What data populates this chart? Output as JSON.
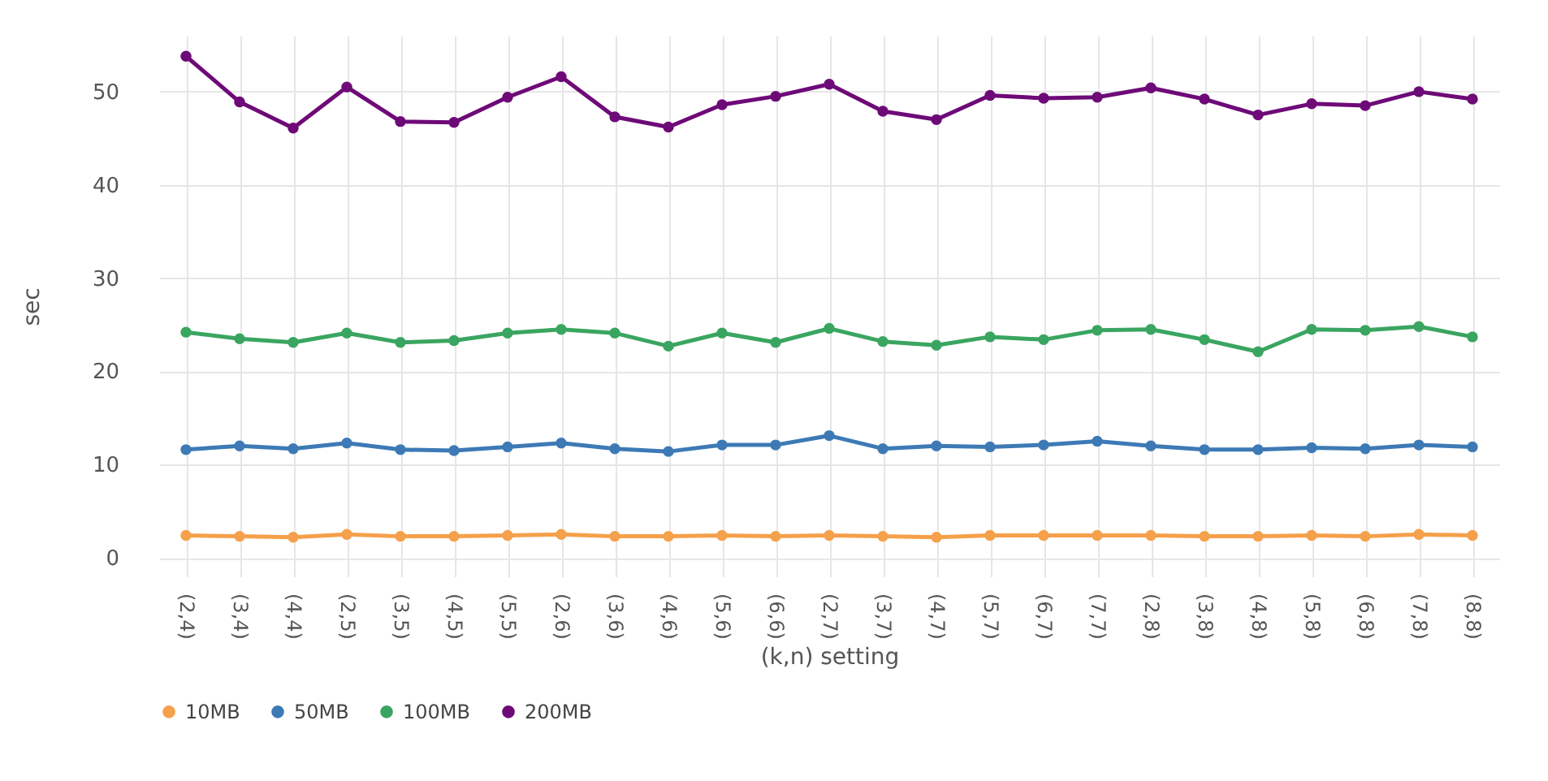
{
  "chart_data": {
    "type": "line",
    "xlabel": "(k,n) setting",
    "ylabel": "sec",
    "categories": [
      "(2,4)",
      "(3,4)",
      "(4,4)",
      "(2,5)",
      "(3,5)",
      "(4,5)",
      "(5,5)",
      "(2,6)",
      "(3,6)",
      "(4,6)",
      "(5,6)",
      "(6,6)",
      "(2,7)",
      "(3,7)",
      "(4,7)",
      "(5,7)",
      "(6,7)",
      "(7,7)",
      "(2,8)",
      "(3,8)",
      "(4,8)",
      "(5,8)",
      "(6,8)",
      "(7,8)",
      "(8,8)"
    ],
    "series": [
      {
        "name": "10MB",
        "color": "#f5a04a",
        "values": [
          2.4,
          2.3,
          2.2,
          2.5,
          2.3,
          2.3,
          2.4,
          2.5,
          2.3,
          2.3,
          2.4,
          2.3,
          2.4,
          2.3,
          2.2,
          2.4,
          2.4,
          2.4,
          2.4,
          2.3,
          2.3,
          2.4,
          2.3,
          2.5,
          2.4
        ]
      },
      {
        "name": "50MB",
        "color": "#3d7ab5",
        "values": [
          11.6,
          12.0,
          11.7,
          12.3,
          11.6,
          11.5,
          11.9,
          12.3,
          11.7,
          11.4,
          12.1,
          12.1,
          13.1,
          11.7,
          12.0,
          11.9,
          12.1,
          12.5,
          12.0,
          11.6,
          11.6,
          11.8,
          11.7,
          12.1,
          11.9
        ]
      },
      {
        "name": "100MB",
        "color": "#3aa560",
        "values": [
          24.2,
          23.5,
          23.1,
          24.1,
          23.1,
          23.3,
          24.1,
          24.5,
          24.1,
          22.7,
          24.1,
          23.1,
          24.6,
          23.2,
          22.8,
          23.7,
          23.4,
          24.4,
          24.5,
          23.4,
          22.1,
          24.5,
          24.4,
          24.8,
          23.7
        ]
      },
      {
        "name": "200MB",
        "color": "#6e0a78",
        "values": [
          53.8,
          48.9,
          46.1,
          50.5,
          46.8,
          46.7,
          49.4,
          51.6,
          47.3,
          46.2,
          48.6,
          49.5,
          50.8,
          47.9,
          47.0,
          49.6,
          49.3,
          49.4,
          50.4,
          49.2,
          47.5,
          48.7,
          48.5,
          50.0,
          49.2
        ]
      }
    ],
    "ylim": [
      -2,
      56
    ],
    "yticks": [
      0,
      10,
      20,
      30,
      40,
      50
    ],
    "grid": true,
    "legend": "bottom left",
    "marker": "circle",
    "line_style": "solid"
  }
}
